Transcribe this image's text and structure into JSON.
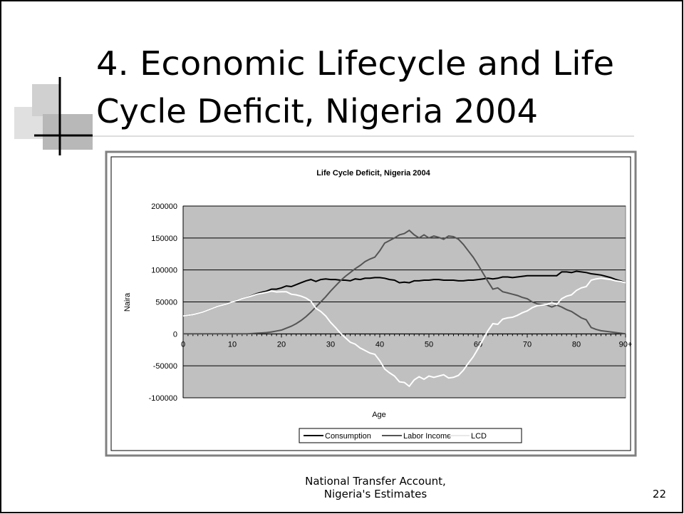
{
  "slide": {
    "title_lines": [
      "4.   Economic Lifecycle and Life",
      "Cycle Deficit, Nigeria 2004"
    ],
    "caption_lines": [
      "National Transfer Account,",
      "Nigeria's Estimates"
    ],
    "page_number": "22"
  },
  "chart_data": {
    "type": "line",
    "title": "Life Cycle Deficit, Nigeria 2004",
    "x_label": "Age",
    "y_label": "Naira",
    "x": [
      0,
      1,
      2,
      3,
      4,
      5,
      6,
      7,
      8,
      9,
      10,
      11,
      12,
      13,
      14,
      15,
      16,
      17,
      18,
      19,
      20,
      21,
      22,
      23,
      24,
      25,
      26,
      27,
      28,
      29,
      30,
      31,
      32,
      33,
      34,
      35,
      36,
      37,
      38,
      39,
      40,
      41,
      42,
      43,
      44,
      45,
      46,
      47,
      48,
      49,
      50,
      51,
      52,
      53,
      54,
      55,
      56,
      57,
      58,
      59,
      60,
      61,
      62,
      63,
      64,
      65,
      66,
      67,
      68,
      69,
      70,
      71,
      72,
      73,
      74,
      75,
      76,
      77,
      78,
      79,
      80,
      81,
      82,
      83,
      84,
      85,
      86,
      87,
      88,
      89,
      90
    ],
    "xlim": [
      0,
      90
    ],
    "xticks": [
      0,
      10,
      20,
      30,
      40,
      50,
      60,
      70,
      80,
      {
        "value": 90,
        "label": "90+"
      }
    ],
    "ylim": [
      -100000,
      200000
    ],
    "yticks": [
      -100000,
      -50000,
      0,
      50000,
      100000,
      150000,
      200000
    ],
    "grid": true,
    "plot_background": "#c0c0c0",
    "legend": "bottom",
    "series": [
      {
        "name": "Consumption",
        "color": "#000000",
        "values": [
          28000,
          29000,
          30000,
          32000,
          34000,
          37000,
          40000,
          43000,
          45000,
          47000,
          50000,
          52000,
          55000,
          57000,
          60000,
          63000,
          65000,
          67000,
          70000,
          70000,
          72000,
          75000,
          74000,
          77000,
          80000,
          83000,
          85000,
          82000,
          85000,
          86000,
          85000,
          85000,
          84000,
          84000,
          83000,
          86000,
          85000,
          87000,
          87000,
          88000,
          88000,
          87000,
          85000,
          84000,
          80000,
          81000,
          80000,
          83000,
          83000,
          84000,
          84000,
          85000,
          85000,
          84000,
          84000,
          84000,
          83000,
          83000,
          84000,
          84000,
          85000,
          86000,
          87000,
          86000,
          87000,
          89000,
          89000,
          88000,
          89000,
          90000,
          91000,
          91000,
          91000,
          91000,
          91000,
          91000,
          91000,
          97000,
          97000,
          96000,
          98000,
          97000,
          96000,
          94000,
          93000,
          92000,
          90000,
          88000,
          85000,
          83000,
          80000
        ]
      },
      {
        "name": "Labor Income",
        "color": "#555555",
        "values": [
          0,
          0,
          0,
          0,
          0,
          0,
          0,
          0,
          0,
          0,
          0,
          0,
          0,
          0,
          500,
          1000,
          1500,
          2000,
          3000,
          4500,
          6000,
          9000,
          12000,
          16000,
          21000,
          27000,
          34000,
          42000,
          50000,
          58000,
          67000,
          75000,
          83000,
          90000,
          96000,
          102000,
          107000,
          113000,
          117000,
          120000,
          130000,
          142000,
          146000,
          150000,
          155000,
          157000,
          162000,
          155000,
          150000,
          155000,
          150000,
          153000,
          151000,
          148000,
          153000,
          152000,
          148000,
          140000,
          130000,
          120000,
          108000,
          95000,
          82000,
          70000,
          72000,
          66000,
          64000,
          62000,
          60000,
          57000,
          55000,
          50000,
          47000,
          46000,
          45000,
          42000,
          45000,
          42000,
          38000,
          35000,
          30000,
          25000,
          22000,
          10000,
          7000,
          5000,
          4000,
          3000,
          2000,
          1000,
          0
        ]
      },
      {
        "name": "LCD",
        "color": "#ffffff",
        "values": [
          28000,
          29000,
          30000,
          32000,
          34000,
          37000,
          40000,
          43000,
          45000,
          47000,
          50000,
          52000,
          55000,
          57000,
          59500,
          62000,
          63500,
          65000,
          67000,
          65500,
          66000,
          66000,
          62000,
          61000,
          59000,
          56000,
          51000,
          40000,
          35000,
          28000,
          18000,
          10000,
          1000,
          -6000,
          -13000,
          -16000,
          -22000,
          -26000,
          -30000,
          -32000,
          -42000,
          -55000,
          -61000,
          -66000,
          -75000,
          -76000,
          -82000,
          -72000,
          -67000,
          -71000,
          -66000,
          -68000,
          -66000,
          -64000,
          -69000,
          -68000,
          -65000,
          -57000,
          -46000,
          -36000,
          -23000,
          -9000,
          5000,
          16000,
          15000,
          23000,
          25000,
          26000,
          29000,
          33000,
          36000,
          41000,
          44000,
          45000,
          46000,
          49000,
          46000,
          55000,
          59000,
          61000,
          68000,
          72000,
          74000,
          84000,
          86000,
          87000,
          86000,
          85000,
          83000,
          82000,
          80000
        ]
      }
    ]
  }
}
